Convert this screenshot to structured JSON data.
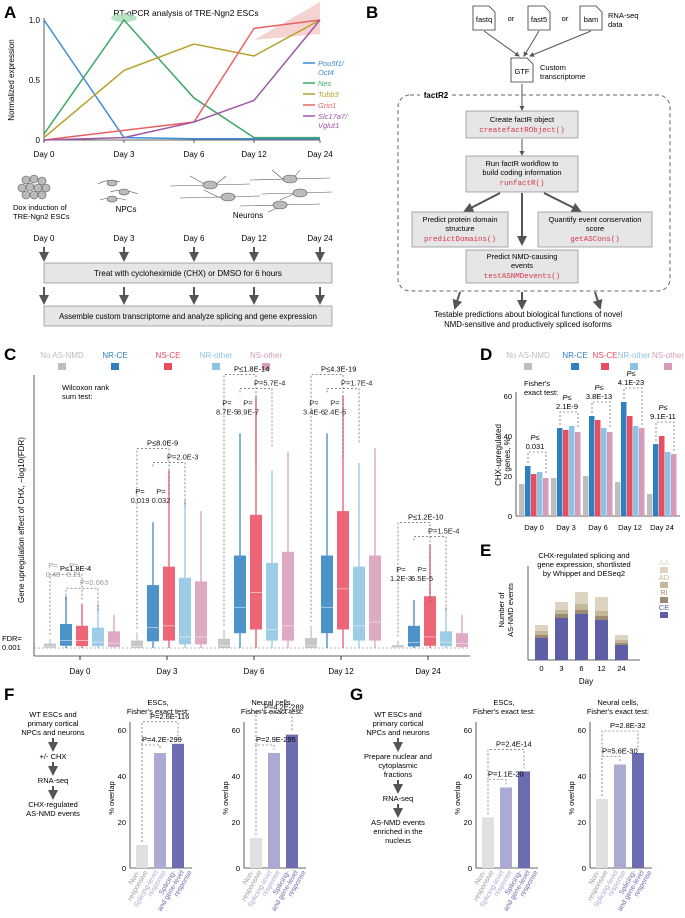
{
  "colors": {
    "pou": "#3a8fd6",
    "nes": "#3aa866",
    "tubb": "#b6a12c",
    "grin": "#e8625f",
    "slc": "#9f57a6",
    "noas": "#bdbdbd",
    "ce": "#2f7fc1",
    "ns": "#e94b5f",
    "nro": "#8cc3e3",
    "nso": "#d79ab8",
    "fa1": "#e0e0e0",
    "fa2": "#aaaad3",
    "fa3": "#6c6cb0",
    "aa": "#ddd4c0",
    "ad": "#c4b79a",
    "ri": "#9b8b73",
    "ceE": "#5e5ea6",
    "red": "#d6334a"
  },
  "panelA": {
    "letter": "A",
    "title": "RT-qPCR analysis of TRE-Ngn2 ESCs",
    "ylabel": "Normalized expression",
    "yticks": [
      "0",
      "0.5",
      "1.0"
    ],
    "days": [
      "Day 0",
      "Day 3",
      "Day 6",
      "Day 12",
      "Day 24"
    ],
    "legend": [
      {
        "t": "Pou5f1/",
        "t2": "Oct4",
        "c": "pou"
      },
      {
        "t": "Nes",
        "c": "nes"
      },
      {
        "t": "Tubb3",
        "c": "tubb"
      },
      {
        "t": "Grin1",
        "c": "grin"
      },
      {
        "t": "Slc17a7/",
        "t2": "Vglut1",
        "c": "slc"
      }
    ],
    "series": [
      {
        "c": "pou",
        "v": [
          1.0,
          0.02,
          0.01,
          0.01,
          0.01
        ]
      },
      {
        "c": "nes",
        "v": [
          0.05,
          1.0,
          0.35,
          0.02,
          0.02
        ]
      },
      {
        "c": "tubb",
        "v": [
          0.02,
          0.58,
          0.8,
          0.7,
          1.0
        ]
      },
      {
        "c": "grin",
        "v": [
          0.0,
          0.08,
          0.15,
          0.93,
          1.0
        ]
      },
      {
        "c": "slc",
        "v": [
          0.0,
          0.02,
          0.15,
          0.33,
          1.0
        ]
      }
    ],
    "dox": "Dox induction of",
    "dox2": "TRE-Ngn2 ESCs",
    "npcs": "NPCs",
    "neurons": "Neurons",
    "treat": "Treat with cycloheximide (CHX) or DMSO for 6 hours",
    "assemble": "Assemble custom transcriptome and analyze splicing and gene expression"
  },
  "panelB": {
    "letter": "B",
    "files": [
      "fastq",
      "fast5",
      "bam"
    ],
    "or": "or",
    "rnaseq": "RNA-seq",
    "data": "data",
    "gtf": "GTF",
    "custom": "Custom",
    "transcriptome": "transcriptome",
    "pkg": "factR2",
    "step1": "Create factR object",
    "fn1": "createfactRObject()",
    "step2": "Run factR workflow to",
    "step2b": "build coding information",
    "fn2": "runfactR()",
    "step3": "Predict protein domain",
    "step3b": "structure",
    "fn3": "predictDomains()",
    "step4": "Quantify event conservation",
    "step4b": "score",
    "fn4": "getASCons()",
    "step5": "Predict NMD-causing",
    "step5b": "events",
    "fn5": "testASNMDevents()",
    "out1": "Testable predictions about biological functions of novel",
    "out2": "NMD-sensitive and productively spliced isoforms"
  },
  "panelC": {
    "letter": "C",
    "ylabel": "Gene upregulation effect of CHX, −log10(FDR)",
    "legend": [
      {
        "t": "No AS-NMD",
        "c": "noas"
      },
      {
        "t": "NR-CE",
        "c": "ce"
      },
      {
        "t": "NS-CE",
        "c": "ns"
      },
      {
        "t": "NR-other",
        "c": "nro"
      },
      {
        "t": "NS-other",
        "c": "nso"
      }
    ],
    "test": "Wilcoxon rank",
    "test2": "sum test:",
    "fdr": "FDR=",
    "fdr2": "0.001",
    "days": [
      "Day 0",
      "Day 3",
      "Day 6",
      "Day 12",
      "Day 24"
    ],
    "boxes": [
      [
        [
          0,
          0,
          0.3,
          1.2,
          2.5
        ],
        [
          0,
          0.6,
          2,
          6.5,
          14
        ],
        [
          0,
          0.5,
          2,
          6,
          12
        ],
        [
          0,
          0.5,
          1.6,
          5.5,
          12
        ],
        [
          0,
          0.3,
          1.3,
          4.5,
          9
        ]
      ],
      [
        [
          0,
          0,
          0.4,
          2,
          4.2
        ],
        [
          0,
          1.8,
          5.5,
          17,
          34
        ],
        [
          0,
          2,
          6,
          22,
          48
        ],
        [
          0,
          1,
          3,
          19,
          40
        ],
        [
          0,
          1,
          3,
          18,
          37
        ]
      ],
      [
        [
          0,
          0,
          0.6,
          2.5,
          5
        ],
        [
          0,
          4,
          11,
          25,
          58
        ],
        [
          0,
          5,
          15,
          36,
          68
        ],
        [
          0,
          2,
          5,
          23,
          48
        ],
        [
          0,
          2,
          6,
          26,
          53
        ]
      ],
      [
        [
          0,
          0,
          0.6,
          2.7,
          6
        ],
        [
          0,
          4,
          11,
          25,
          58
        ],
        [
          0,
          5,
          16,
          37,
          68
        ],
        [
          0,
          2,
          6,
          22,
          50
        ],
        [
          0,
          2,
          7,
          25,
          54
        ]
      ],
      [
        [
          0,
          0,
          0.2,
          0.8,
          2
        ],
        [
          0,
          0.4,
          1.5,
          6,
          13
        ],
        [
          0,
          0.6,
          3,
          14,
          28
        ],
        [
          0,
          0.5,
          1.6,
          4.5,
          11
        ],
        [
          0,
          0.3,
          1.2,
          4,
          9
        ]
      ]
    ],
    "pvals": [
      {
        "top": "P≤1.8E-4",
        "a": "P=",
        "a2": "0.40",
        "b": "P=",
        "b2": "0.21",
        "c": "P=0.063"
      },
      {
        "top": "P≤8.0E-9",
        "a": "P=",
        "a2": "0.019",
        "b": "P=",
        "b2": "0.032",
        "c": "P=2.0E-3"
      },
      {
        "top": "P≤1.8E-14",
        "a": "P=",
        "a2": "8.7E-5",
        "b": "P=",
        "b2": "8.9E-7",
        "c": "P=5.7E-4"
      },
      {
        "top": "P≤4.3E-19",
        "a": "P=",
        "a2": "3.4E-6",
        "b": "P=",
        "b2": "2.4E-5",
        "c": "P=1.7E-4"
      },
      {
        "top": "P≤1.2E-10",
        "a": "P=",
        "a2": "1.2E-3",
        "b": "P=",
        "b2": "6.5E-5",
        "c": "P=1.5E-4"
      }
    ]
  },
  "panelD": {
    "letter": "D",
    "ylabel": "CHX-upregulated",
    "ylabel2": "genes, %",
    "yticks": [
      "0",
      "20",
      "40",
      "60"
    ],
    "test": "Fisher's",
    "test2": "exact test:",
    "days": [
      "Day 0",
      "Day 3",
      "Day 6",
      "Day 12",
      "Day 24"
    ],
    "values": [
      [
        16,
        25,
        21,
        22,
        19
      ],
      [
        19,
        44,
        43,
        45,
        42
      ],
      [
        20,
        50,
        48,
        44,
        42
      ],
      [
        17,
        57,
        50,
        45,
        44
      ],
      [
        11,
        36,
        40,
        32,
        31
      ]
    ],
    "pvals": [
      {
        "p": "P≤",
        "v": "0.031"
      },
      {
        "p": "P≤",
        "v": "2.1E-9"
      },
      {
        "p": "P≤",
        "v": "3.8E-13"
      },
      {
        "p": "P≤",
        "v": "4.1E-23"
      },
      {
        "p": "P≤",
        "v": "9.1E-11"
      }
    ]
  },
  "panelE": {
    "letter": "E",
    "title": "CHX-regulated splicing and",
    "title2": "gene expression, shortlisted",
    "title3": "by Whippet and DESeq2",
    "ylabel": "Number of",
    "ylabel2": "AS-NMD events",
    "xlabel": "Day",
    "days": [
      "0",
      "3",
      "6",
      "12",
      "24"
    ],
    "legend": [
      {
        "t": "AA",
        "c": "aa"
      },
      {
        "t": "AD",
        "c": "ad"
      },
      {
        "t": "RI",
        "c": "ri"
      },
      {
        "t": "CE",
        "c": "ceE"
      }
    ],
    "stacks": [
      [
        22,
        3,
        4,
        6
      ],
      [
        42,
        4,
        4,
        8
      ],
      [
        46,
        4,
        6,
        12
      ],
      [
        40,
        4,
        5,
        14
      ],
      [
        15,
        2,
        3,
        5
      ]
    ]
  },
  "panelF": {
    "letter": "F",
    "flow": [
      "WT ESCs and",
      "primary cortical",
      "NPCs and neurons",
      "+/- CHX",
      "RNA-seq",
      "CHX-regulated",
      "AS-NMD events"
    ],
    "c1": {
      "t": "ESCs,",
      "t2": "Fisher's exact test:",
      "p1": "P=4.2E-299",
      "p2": "P=2.6E-116",
      "v": [
        10,
        50,
        54
      ]
    },
    "c2": {
      "t": "Neural cells,",
      "t2": "Fisher's exact test:",
      "p1": "P=2.9E-295",
      "p2": "P=4.2E-289",
      "v": [
        13,
        50,
        58
      ]
    }
  },
  "panelG": {
    "letter": "G",
    "flow": [
      "WT ESCs and",
      "primary cortical",
      "NPCs and neurons",
      "Prepare nuclear and",
      "cytoplasmic",
      "fractions",
      "RNA-seq",
      "AS-NMD events",
      "enriched in the",
      "nucleus"
    ],
    "c1": {
      "t": "ESCs,",
      "t2": "Fisher's exact test:",
      "p1": "P=1.1E-20",
      "p2": "P=2.4E-14",
      "v": [
        22,
        35,
        42
      ]
    },
    "c2": {
      "t": "Neural cells,",
      "t2": "Fisher's exact test:",
      "p1": "P=5.6E-30",
      "p2": "P=2.8E-32",
      "v": [
        30,
        45,
        50
      ]
    }
  },
  "fg": {
    "ylabel": "% overlap",
    "yticks": [
      "0",
      "20",
      "40",
      "60"
    ],
    "cats": [
      [
        "Non-",
        "responsive"
      ],
      [
        "Splicing-level",
        "response"
      ],
      [
        "Splicing-",
        "and gene-level",
        "response"
      ]
    ]
  }
}
